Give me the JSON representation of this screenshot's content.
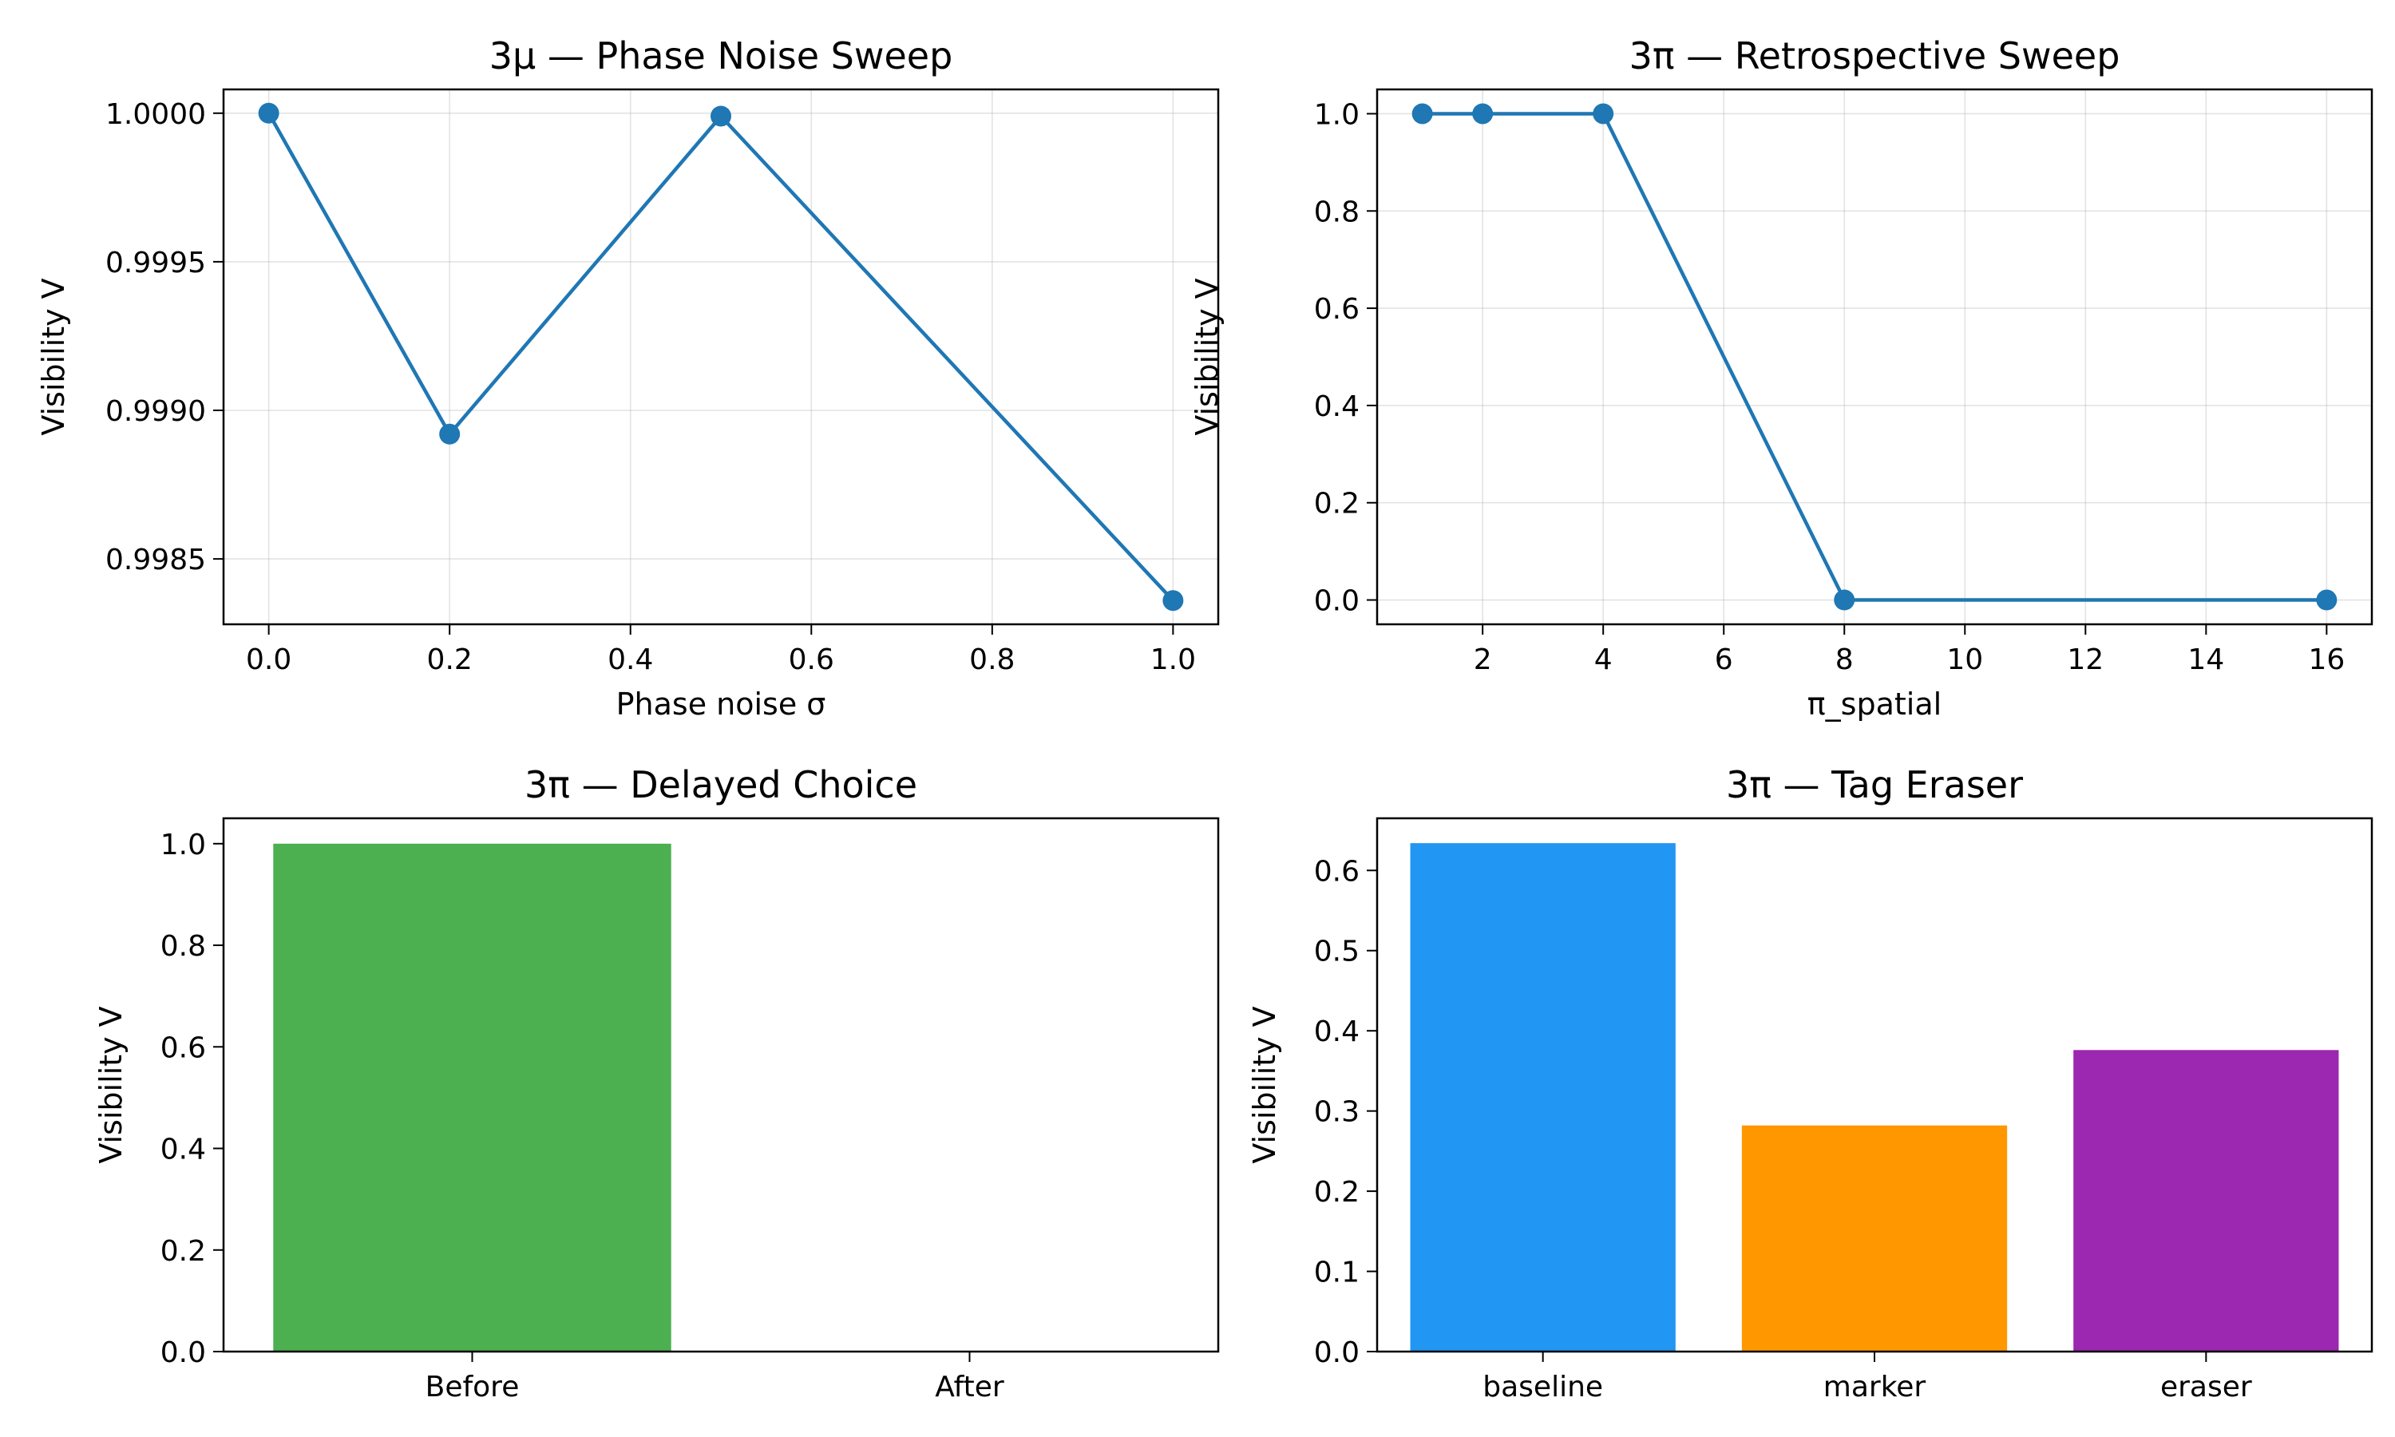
{
  "chart_data": [
    {
      "type": "line",
      "title": "3μ — Phase Noise Sweep",
      "xlabel": "Phase noise σ",
      "ylabel": "Visibility V",
      "x": [
        0.0,
        0.2,
        0.5,
        1.0
      ],
      "series": [
        {
          "values": [
            1.0,
            0.99892,
            0.99999,
            0.99836
          ],
          "color": "#1f77b4"
        }
      ],
      "xlim": [
        -0.05,
        1.05
      ],
      "ylim": [
        0.99828,
        1.00008
      ],
      "xticks": [
        0.0,
        0.2,
        0.4,
        0.6,
        0.8,
        1.0
      ],
      "xtick_labels": [
        "0.0",
        "0.2",
        "0.4",
        "0.6",
        "0.8",
        "1.0"
      ],
      "yticks": [
        0.9985,
        0.999,
        0.9995,
        1.0
      ],
      "ytick_labels": [
        "0.9985",
        "0.9990",
        "0.9995",
        "1.0000"
      ],
      "grid": true,
      "marker": "circle"
    },
    {
      "type": "line",
      "title": "3π — Retrospective Sweep",
      "xlabel": "π_spatial",
      "ylabel": "Visibility V",
      "x": [
        1,
        2,
        4,
        8,
        16
      ],
      "series": [
        {
          "values": [
            1.0,
            1.0,
            1.0,
            0.0,
            0.0
          ],
          "color": "#1f77b4"
        }
      ],
      "xlim": [
        0.25,
        16.75
      ],
      "ylim": [
        -0.05,
        1.05
      ],
      "xticks": [
        2,
        4,
        6,
        8,
        10,
        12,
        14,
        16
      ],
      "xtick_labels": [
        "2",
        "4",
        "6",
        "8",
        "10",
        "12",
        "14",
        "16"
      ],
      "yticks": [
        0.0,
        0.2,
        0.4,
        0.6,
        0.8,
        1.0
      ],
      "ytick_labels": [
        "0.0",
        "0.2",
        "0.4",
        "0.6",
        "0.8",
        "1.0"
      ],
      "grid": true,
      "marker": "circle"
    },
    {
      "type": "bar",
      "title": "3π — Delayed Choice",
      "xlabel": "",
      "ylabel": "Visibility V",
      "categories": [
        "Before",
        "After"
      ],
      "values": [
        1.0,
        0.0
      ],
      "colors": [
        "#4caf50",
        "#f44336"
      ],
      "ylim": [
        0,
        1.05
      ],
      "yticks": [
        0.0,
        0.2,
        0.4,
        0.6,
        0.8,
        1.0
      ],
      "ytick_labels": [
        "0.0",
        "0.2",
        "0.4",
        "0.6",
        "0.8",
        "1.0"
      ],
      "grid": false
    },
    {
      "type": "bar",
      "title": "3π — Tag Eraser",
      "xlabel": "",
      "ylabel": "Visibility V",
      "categories": [
        "baseline",
        "marker",
        "eraser"
      ],
      "values": [
        0.634,
        0.282,
        0.376
      ],
      "colors": [
        "#2196f3",
        "#ff9800",
        "#9c27b0"
      ],
      "ylim": [
        0,
        0.665
      ],
      "yticks": [
        0.0,
        0.1,
        0.2,
        0.3,
        0.4,
        0.5,
        0.6
      ],
      "ytick_labels": [
        "0.0",
        "0.1",
        "0.2",
        "0.3",
        "0.4",
        "0.5",
        "0.6"
      ],
      "grid": false
    }
  ]
}
